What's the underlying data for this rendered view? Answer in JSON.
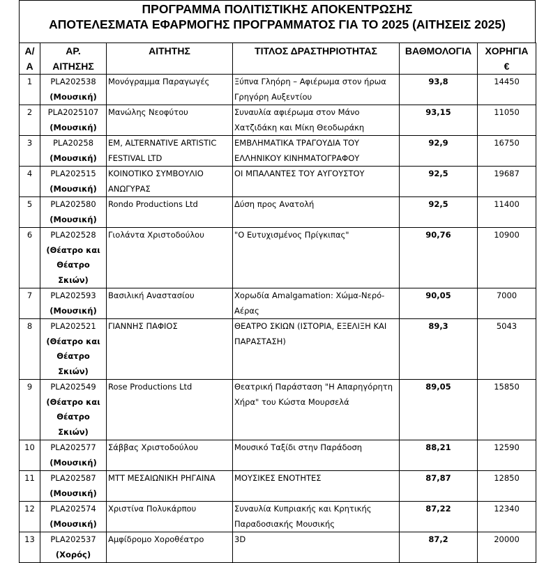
{
  "title": {
    "line1": "ΠΡΟΓΡΑΜΜΑ ΠΟΛΙΤΙΣΤΙΚΗΣ ΑΠΟΚΕΝΤΡΩΣΗΣ",
    "line2": "ΑΠΟΤΕΛΕΣΜΑΤΑ ΕΦΑΡΜΟΓΗΣ ΠΡΟΓΡΑΜΜΑΤΟΣ ΓΙΑ ΤΟ 2025 (ΑΙΤΗΣΕΙΣ 2025)"
  },
  "headers": {
    "aa": [
      "Α/",
      "Α"
    ],
    "app_no": [
      "ΑΡ.",
      "ΑΙΤΗΣΗΣ"
    ],
    "applicant": "ΑΙΤΗΤΗΣ",
    "activity": "ΤΙΤΛΟΣ ΔΡΑΣΤΗΡΙΟΤΗΤΑΣ",
    "score": "ΒΑΘΜΟΛΟΓΙΑ",
    "grant": [
      "ΧΟΡΗΓΙΑ",
      "€"
    ]
  },
  "rows": [
    {
      "aa": "1",
      "code": "PLA202538",
      "category": "(Μουσική)",
      "applicant": [
        "Μονόγραμμα Παραγωγές"
      ],
      "activity": [
        "Ξύπνα Γληόρη – Αφιέρωμα στον ήρωα",
        "Γρηγόρη Αυξεντίου"
      ],
      "score": "93,8",
      "grant": "14450"
    },
    {
      "aa": "2",
      "code": "PLA2025107",
      "category": "(Μουσική)",
      "applicant": [
        "Μανώλης Νεοφύτου"
      ],
      "activity": [
        "Συναυλία αφιέρωμα στον Μάνο",
        "Χατζιδάκη και Μίκη Θεοδωράκη"
      ],
      "score": "93,15",
      "grant": "11050"
    },
    {
      "aa": "3",
      "code": "PLA20258",
      "category": "(Μουσική)",
      "applicant": [
        "EM, ALTERNATIVE ARTISTIC",
        "FESTIVAL LTD"
      ],
      "activity": [
        "ΕΜΒΛΗΜΑΤΙΚΑ ΤΡΑΓΟΥΔΙΑ ΤΟΥ",
        "ΕΛΛΗΝΙΚΟΥ ΚΙΝΗΜΑΤΟΓΡΑΦΟΥ"
      ],
      "score": "92,9",
      "grant": "16750"
    },
    {
      "aa": "4",
      "code": "PLA202515",
      "category": "(Μουσική)",
      "applicant": [
        "ΚΟΙΝΟΤΙΚΟ ΣΥΜΒΟΥΛΙΟ",
        "ΑΝΩΓΥΡΑΣ"
      ],
      "activity": [
        "ΟΙ ΜΠΑΛΑΝΤΕΣ ΤΟΥ ΑΥΓΟΥΣΤΟΥ"
      ],
      "score": "92,5",
      "grant": "19687"
    },
    {
      "aa": "5",
      "code": "PLA202580",
      "category": "(Μουσική)",
      "applicant": [
        "Rondo Productions Ltd"
      ],
      "activity": [
        "Δύση προς Ανατολή"
      ],
      "score": "92,5",
      "grant": "11400"
    },
    {
      "aa": "6",
      "code": "PLA202528",
      "category": "(Θέατρο και Θέατρο Σκιών)",
      "applicant": [
        "Γιολάντα Χριστοδούλου"
      ],
      "activity": [
        "\"Ο Ευτυχισμένος Πρίγκιπας\""
      ],
      "score": "90,76",
      "grant": "10900"
    },
    {
      "aa": "7",
      "code": "PLA202593",
      "category": "(Μουσική)",
      "applicant": [
        "Βασιλική Αναστασίου"
      ],
      "activity": [
        "Χορωδία Amalgamation: Χώμα-Νερό-",
        "Αέρας"
      ],
      "score": "90,05",
      "grant": "7000"
    },
    {
      "aa": "8",
      "code": "PLA202521",
      "category": "(Θέατρο και Θέατρο Σκιών)",
      "applicant": [
        "ΓΙΑΝΝΗΣ ΠΑΦΙΟΣ"
      ],
      "activity": [
        "ΘΕΑΤΡΟ ΣΚΙΩΝ (ΙΣΤΟΡΙΑ, ΕΞΕΛΙΞΗ ΚΑΙ",
        "ΠΑΡΑΣΤΑΣΗ)"
      ],
      "score": "89,3",
      "grant": "5043"
    },
    {
      "aa": "9",
      "code": "PLA202549",
      "category": "(Θέατρο και Θέατρο Σκιών)",
      "applicant": [
        "Rose Productions Ltd"
      ],
      "activity": [
        "Θεατρική Παράσταση \"Η Απαρηγόρητη",
        "Χήρα\" του Κώστα Μουρσελά"
      ],
      "score": "89,05",
      "grant": "15850"
    },
    {
      "aa": "10",
      "code": "PLA202577",
      "category": "(Μουσική)",
      "applicant": [
        "Σάββας Χριστοδούλου"
      ],
      "activity": [
        "Μουσικό Ταξίδι στην Παράδοση"
      ],
      "score": "88,21",
      "grant": "12590"
    },
    {
      "aa": "11",
      "code": "PLA202587",
      "category": "(Μουσική)",
      "applicant": [
        "ΜΤΤ ΜΕΣΑΙΩΝΙΚΗ ΡΗΓΑΙΝΑ"
      ],
      "activity": [
        "ΜΟΥΣΙΚΕΣ ΕΝΟΤΗΤΕΣ"
      ],
      "score": "87,87",
      "grant": "12850"
    },
    {
      "aa": "12",
      "code": "PLA202574",
      "category": "(Μουσική)",
      "applicant": [
        "Χριστίνα Πολυκάρπου"
      ],
      "activity": [
        "Συναυλία Κυπριακής και Κρητικής",
        "Παραδοσιακής Μουσικής"
      ],
      "score": "87,22",
      "grant": "12340"
    },
    {
      "aa": "13",
      "code": "PLA202537",
      "category": "(Χορός)",
      "applicant": [
        "Αμφίδρομο Χοροθέατρο"
      ],
      "activity": [
        "3D"
      ],
      "score": "87,2",
      "grant": "20000"
    }
  ]
}
